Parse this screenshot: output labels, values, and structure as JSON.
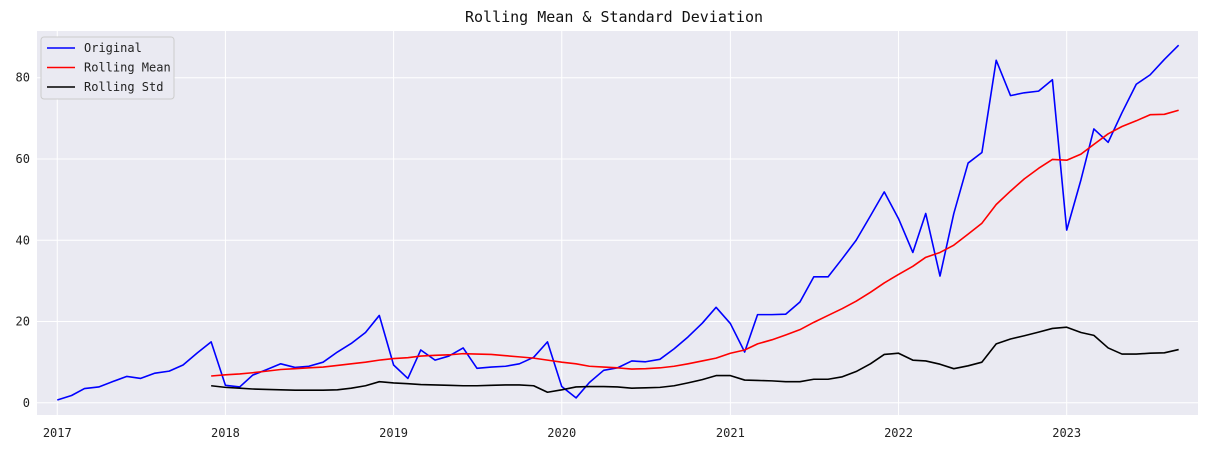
{
  "chart_data": {
    "type": "line",
    "title": "Rolling Mean & Standard Deviation",
    "xlabel": "",
    "ylabel": "",
    "x_ticks": [
      "2017",
      "2018",
      "2019",
      "2020",
      "2021",
      "2022",
      "2023"
    ],
    "y_ticks": [
      0,
      20,
      40,
      60,
      80
    ],
    "xlim": [
      "2016-11-18",
      "2023-10-13"
    ],
    "ylim": [
      -3,
      91.5
    ],
    "grid": true,
    "legend_position": "top-left",
    "x": [
      "2017-01",
      "2017-02",
      "2017-03",
      "2017-04",
      "2017-05",
      "2017-06",
      "2017-07",
      "2017-08",
      "2017-09",
      "2017-10",
      "2017-11",
      "2017-12",
      "2018-01",
      "2018-02",
      "2018-03",
      "2018-04",
      "2018-05",
      "2018-06",
      "2018-07",
      "2018-08",
      "2018-09",
      "2018-10",
      "2018-11",
      "2018-12",
      "2019-01",
      "2019-02",
      "2019-03",
      "2019-04",
      "2019-05",
      "2019-06",
      "2019-07",
      "2019-08",
      "2019-09",
      "2019-10",
      "2019-11",
      "2019-12",
      "2020-01",
      "2020-02",
      "2020-03",
      "2020-04",
      "2020-05",
      "2020-06",
      "2020-07",
      "2020-08",
      "2020-09",
      "2020-10",
      "2020-11",
      "2020-12",
      "2021-01",
      "2021-02",
      "2021-03",
      "2021-04",
      "2021-05",
      "2021-06",
      "2021-07",
      "2021-08",
      "2021-09",
      "2021-10",
      "2021-11",
      "2021-12",
      "2022-01",
      "2022-02",
      "2022-03",
      "2022-04",
      "2022-05",
      "2022-06",
      "2022-07",
      "2022-08",
      "2022-09",
      "2022-10",
      "2022-11",
      "2022-12",
      "2023-01",
      "2023-02",
      "2023-03",
      "2023-04",
      "2023-05",
      "2023-06",
      "2023-07",
      "2023-08",
      "2023-09"
    ],
    "series": [
      {
        "name": "Original",
        "color": "#0000ff",
        "values": [
          0.7,
          1.8,
          3.5,
          3.9,
          5.2,
          6.5,
          6.0,
          7.3,
          7.8,
          9.3,
          12.3,
          15.0,
          4.3,
          3.9,
          6.8,
          8.2,
          9.6,
          8.7,
          9.0,
          10.0,
          12.5,
          14.6,
          17.3,
          21.5,
          9.3,
          6.0,
          13.0,
          10.5,
          11.5,
          13.5,
          8.5,
          8.8,
          9.0,
          9.6,
          11.2,
          15.0,
          4.0,
          1.2,
          5.0,
          8.0,
          8.6,
          10.3,
          10.1,
          10.7,
          13.3,
          16.2,
          19.6,
          23.5,
          19.5,
          12.5,
          21.7,
          21.7,
          21.8,
          24.8,
          31.0,
          31.0,
          35.5,
          40.0,
          46.0,
          51.9,
          45.3,
          37.0,
          46.6,
          31.2,
          46.6,
          59.0,
          61.6,
          84.3,
          75.6,
          76.3,
          76.7,
          79.5,
          42.5,
          54.9,
          67.4,
          64.1,
          71.4,
          78.4,
          80.7,
          84.5,
          88.0
        ]
      },
      {
        "name": "Rolling Mean",
        "color": "#ff0000",
        "values": [
          null,
          null,
          null,
          null,
          null,
          null,
          null,
          null,
          null,
          null,
          null,
          6.6,
          6.9,
          7.1,
          7.4,
          7.8,
          8.2,
          8.4,
          8.6,
          8.8,
          9.2,
          9.6,
          10.0,
          10.5,
          10.9,
          11.1,
          11.5,
          11.7,
          11.8,
          12.1,
          12.0,
          11.9,
          11.6,
          11.3,
          11.0,
          10.5,
          10.0,
          9.6,
          9.0,
          8.8,
          8.6,
          8.3,
          8.4,
          8.6,
          9.0,
          9.6,
          10.3,
          11.0,
          12.2,
          13.0,
          14.5,
          15.5,
          16.7,
          18.0,
          19.8,
          21.5,
          23.2,
          25.0,
          27.2,
          29.5,
          31.6,
          33.6,
          35.8,
          37.0,
          38.8,
          41.5,
          44.2,
          48.8,
          52.1,
          55.1,
          57.7,
          59.9,
          59.7,
          61.2,
          63.6,
          66.2,
          68.0,
          69.4,
          70.9,
          71.0,
          72.0
        ]
      },
      {
        "name": "Rolling Std",
        "color": "#000000",
        "values": [
          null,
          null,
          null,
          null,
          null,
          null,
          null,
          null,
          null,
          null,
          null,
          4.2,
          3.8,
          3.6,
          3.4,
          3.3,
          3.2,
          3.1,
          3.1,
          3.1,
          3.2,
          3.6,
          4.2,
          5.2,
          4.9,
          4.7,
          4.5,
          4.4,
          4.3,
          4.2,
          4.2,
          4.3,
          4.4,
          4.4,
          4.2,
          2.6,
          3.2,
          3.9,
          4.0,
          4.0,
          3.9,
          3.6,
          3.7,
          3.8,
          4.2,
          4.9,
          5.7,
          6.7,
          6.7,
          5.6,
          5.5,
          5.4,
          5.2,
          5.2,
          5.8,
          5.8,
          6.4,
          7.7,
          9.6,
          11.9,
          12.2,
          10.5,
          10.3,
          9.5,
          8.4,
          9.1,
          10.0,
          14.5,
          15.7,
          16.5,
          17.4,
          18.3,
          18.6,
          17.3,
          16.6,
          13.5,
          12.0,
          12.0,
          12.2,
          12.3,
          13.1
        ]
      }
    ]
  }
}
